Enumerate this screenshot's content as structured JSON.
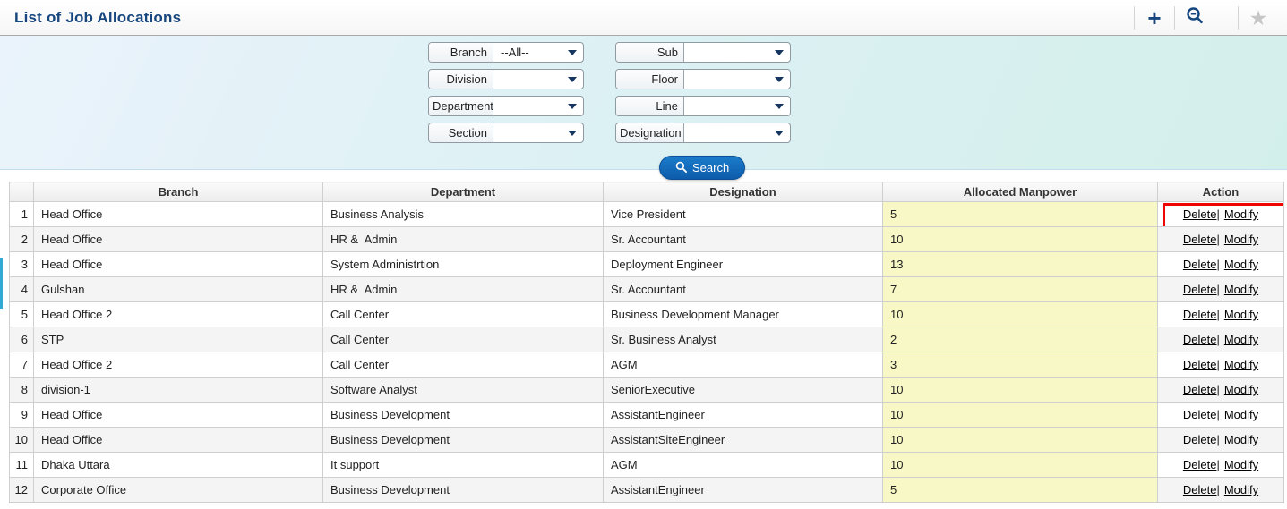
{
  "header": {
    "title": "List of Job Allocations",
    "toolbar": {
      "add_glyph": "+",
      "favorite_glyph": "★"
    }
  },
  "filters": {
    "rows": [
      {
        "left": {
          "label": "Branch",
          "value": "--All--"
        },
        "right": {
          "label": "Sub",
          "value": ""
        }
      },
      {
        "left": {
          "label": "Division",
          "value": ""
        },
        "right": {
          "label": "Floor",
          "value": ""
        }
      },
      {
        "left": {
          "label": "Department",
          "value": ""
        },
        "right": {
          "label": "Line",
          "value": ""
        }
      },
      {
        "left": {
          "label": "Section",
          "value": ""
        },
        "right": {
          "label": "Designation",
          "value": ""
        }
      }
    ],
    "search_label": "Search"
  },
  "table": {
    "columns": [
      "",
      "Branch",
      "Department",
      "Designation",
      "Allocated Manpower",
      "Action"
    ],
    "action_labels": {
      "delete": "Delete",
      "separator": "|",
      "modify": "Modify"
    },
    "rows": [
      {
        "sl": "1",
        "branch": "Head Office",
        "department": "Business Analysis",
        "designation": "Vice President",
        "manpower": "5",
        "highlighted": true
      },
      {
        "sl": "2",
        "branch": "Head Office",
        "department": "HR &  Admin",
        "designation": "Sr. Accountant",
        "manpower": "10"
      },
      {
        "sl": "3",
        "branch": "Head Office",
        "department": "System Administrtion",
        "designation": "Deployment Engineer",
        "manpower": "13"
      },
      {
        "sl": "4",
        "branch": "Gulshan",
        "department": "HR &  Admin",
        "designation": "Sr. Accountant",
        "manpower": "7"
      },
      {
        "sl": "5",
        "branch": "Head Office 2",
        "department": "Call Center",
        "designation": "Business Development Manager",
        "manpower": "10"
      },
      {
        "sl": "6",
        "branch": "STP",
        "department": "Call Center",
        "designation": "Sr. Business Analyst",
        "manpower": "2"
      },
      {
        "sl": "7",
        "branch": "Head Office 2",
        "department": "Call Center",
        "designation": "AGM",
        "manpower": "3"
      },
      {
        "sl": "8",
        "branch": "division-1",
        "department": "Software Analyst",
        "designation": "SeniorExecutive",
        "manpower": "10"
      },
      {
        "sl": "9",
        "branch": "Head Office",
        "department": "Business Development",
        "designation": "AssistantEngineer",
        "manpower": "10"
      },
      {
        "sl": "10",
        "branch": "Head Office",
        "department": "Business Development",
        "designation": "AssistantSiteEngineer",
        "manpower": "10"
      },
      {
        "sl": "11",
        "branch": "Dhaka Uttara",
        "department": "It support",
        "designation": "AGM",
        "manpower": "10"
      },
      {
        "sl": "12",
        "branch": "Corporate Office",
        "department": "Business Development",
        "designation": "AssistantEngineer",
        "manpower": "5"
      }
    ]
  },
  "colors": {
    "accent_navy": "#17477e",
    "manpower_cell_yellow": "#f8f8c6",
    "annotation_red": "#ee0500",
    "search_button_blue": "#0d5cab",
    "panel_blue": "#ddf1f4"
  }
}
